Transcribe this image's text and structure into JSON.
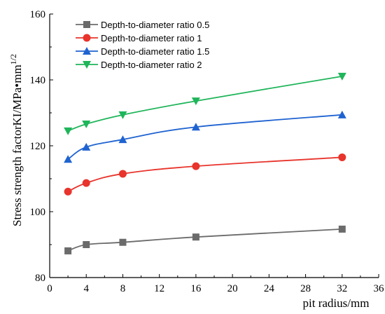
{
  "chart_data": {
    "type": "line",
    "title": "",
    "xlabel": "pit radius/mm",
    "ylabel": "Stress strength factorKI/MPa•mm",
    "ylabel_superscript": "1/2",
    "xlim": [
      0,
      36
    ],
    "ylim": [
      80,
      160
    ],
    "xticks": [
      0,
      4,
      8,
      12,
      16,
      20,
      24,
      28,
      32,
      36
    ],
    "yticks": [
      80,
      100,
      120,
      140,
      160
    ],
    "grid": false,
    "legend_position": "top-left",
    "series": [
      {
        "name": "Depth-to-diameter ratio 0.5",
        "marker": "square",
        "color": "#6b6b6b",
        "x": [
          2,
          4,
          8,
          16,
          32
        ],
        "y": [
          88.1,
          90.0,
          90.7,
          92.3,
          94.7
        ]
      },
      {
        "name": "Depth-to-diameter ratio  1",
        "marker": "circle",
        "color": "#e8342c",
        "x": [
          2,
          4,
          8,
          16,
          32
        ],
        "y": [
          106.1,
          108.7,
          111.5,
          113.8,
          116.5
        ]
      },
      {
        "name": "Depth-to-diameter ratio 1.5",
        "marker": "triangle-up",
        "color": "#1f63d1",
        "x": [
          2,
          4,
          8,
          16,
          32
        ],
        "y": [
          115.9,
          119.6,
          121.9,
          125.7,
          129.4
        ]
      },
      {
        "name": "Depth-to-diameter ratio  2",
        "marker": "triangle-down",
        "color": "#1fb55a",
        "x": [
          2,
          4,
          8,
          16,
          32
        ],
        "y": [
          124.5,
          126.6,
          129.4,
          133.6,
          141.1
        ]
      }
    ]
  }
}
